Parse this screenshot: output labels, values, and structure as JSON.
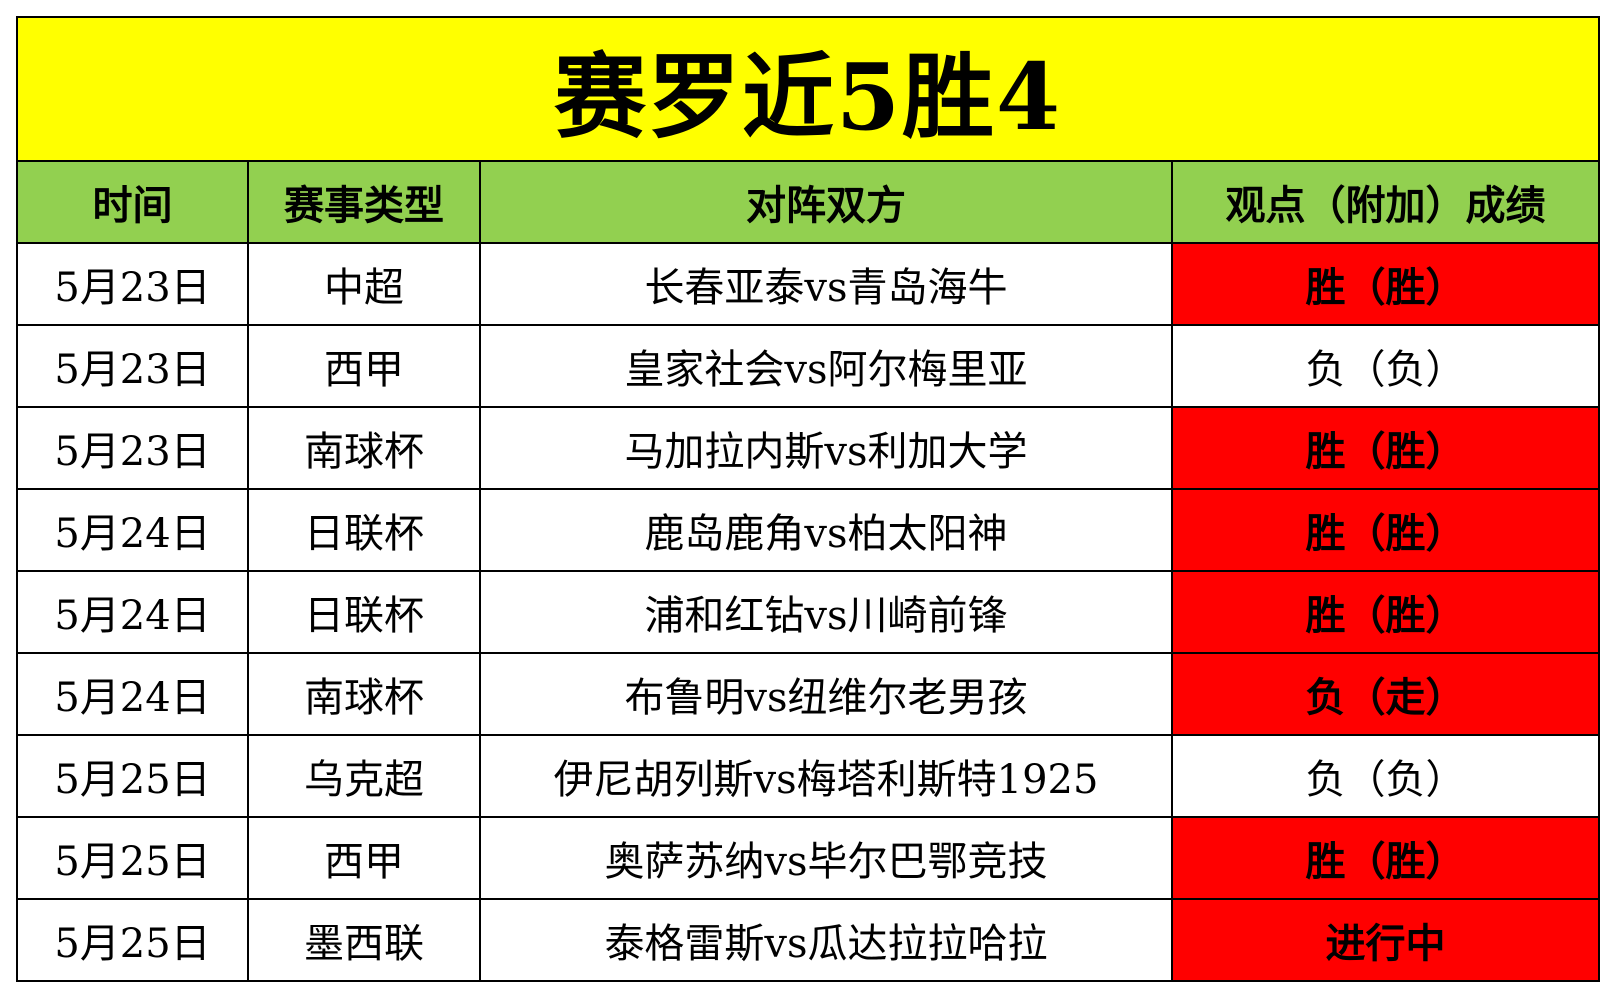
{
  "title": "赛罗近5胜4",
  "headers": [
    "时间",
    "赛事类型",
    "对阵双方",
    "观点（附加）成绩"
  ],
  "rows": [
    {
      "date": "5月23日",
      "league": "中超",
      "match": "长春亚泰vs青岛海牛",
      "result": "胜（胜）",
      "highlight": true
    },
    {
      "date": "5月23日",
      "league": "西甲",
      "match": "皇家社会vs阿尔梅里亚",
      "result": "负（负）",
      "highlight": false
    },
    {
      "date": "5月23日",
      "league": "南球杯",
      "match": "马加拉内斯vs利加大学",
      "result": "胜（胜）",
      "highlight": true
    },
    {
      "date": "5月24日",
      "league": "日联杯",
      "match": "鹿岛鹿角vs柏太阳神",
      "result": "胜（胜）",
      "highlight": true
    },
    {
      "date": "5月24日",
      "league": "日联杯",
      "match": "浦和红钻vs川崎前锋",
      "result": "胜（胜）",
      "highlight": true
    },
    {
      "date": "5月24日",
      "league": "南球杯",
      "match": "布鲁明vs纽维尔老男孩",
      "result": "负（走）",
      "highlight": true
    },
    {
      "date": "5月25日",
      "league": "乌克超",
      "match": "伊尼胡列斯vs梅塔利斯特1925",
      "result": "负（负）",
      "highlight": false
    },
    {
      "date": "5月25日",
      "league": "西甲",
      "match": "奥萨苏纳vs毕尔巴鄂竞技",
      "result": "胜（胜）",
      "highlight": true
    },
    {
      "date": "5月25日",
      "league": "墨西联",
      "match": "泰格雷斯vs瓜达拉拉哈拉",
      "result": "进行中",
      "highlight": true
    }
  ],
  "colors": {
    "title_bg": "#ffff00",
    "header_bg": "#92d050",
    "highlight_bg": "#ff0000",
    "border": "#000000"
  }
}
